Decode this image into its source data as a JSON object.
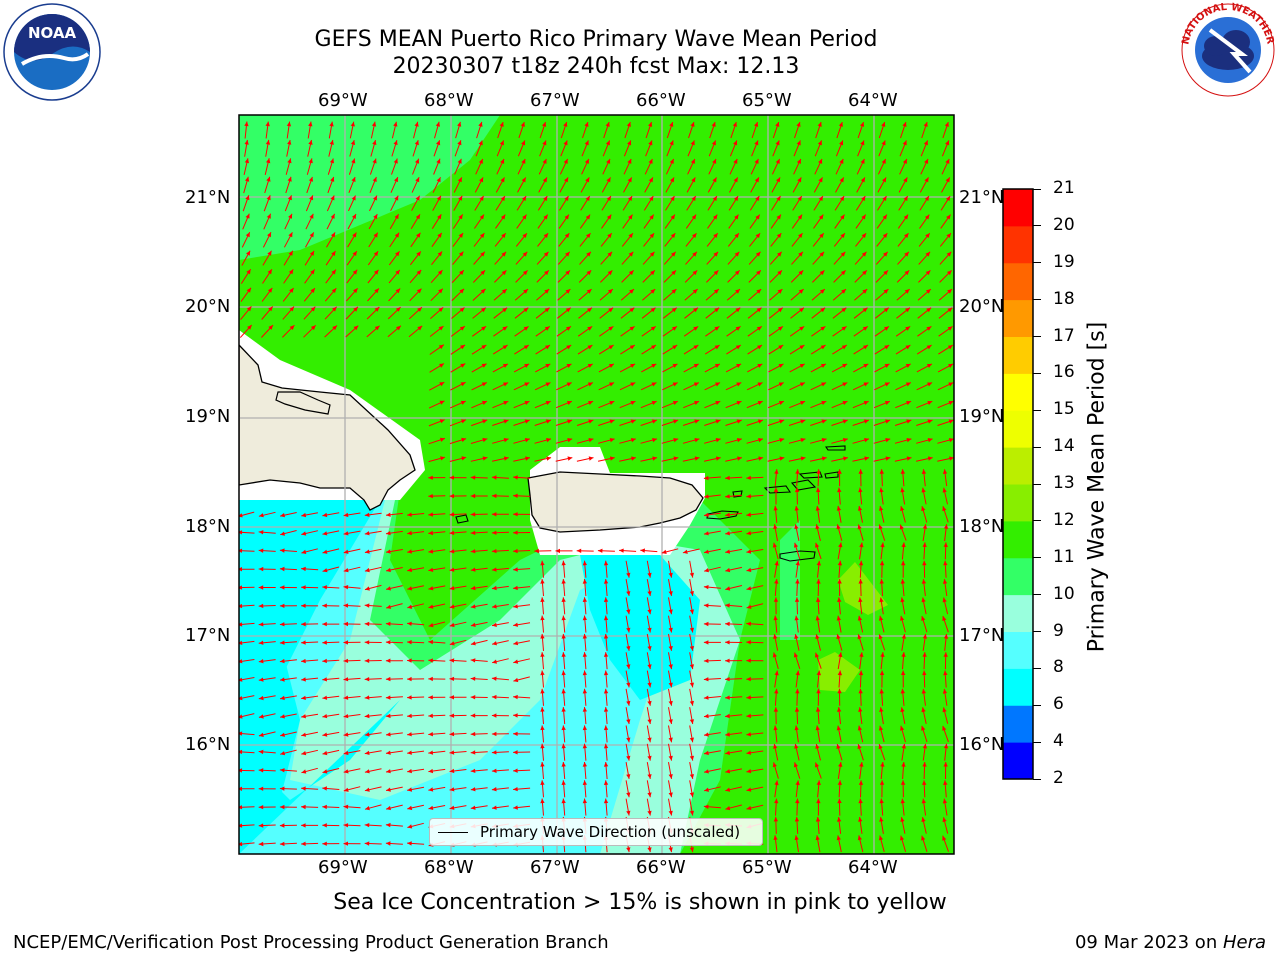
{
  "title": {
    "line1": "GEFS MEAN Puerto Rico Primary Wave Mean Period",
    "line2": "20230307 t18z 240h fcst   Max: 12.13"
  },
  "logos": {
    "left": {
      "name": "noaa-logo",
      "text": "NOAA"
    },
    "right": {
      "name": "nws-logo",
      "text": "NATIONAL WEATHER SERVICE"
    }
  },
  "map": {
    "longitude_labels": [
      "69°W",
      "68°W",
      "67°W",
      "66°W",
      "65°W",
      "64°W"
    ],
    "latitude_labels": [
      "21°N",
      "20°N",
      "19°N",
      "18°N",
      "17°N",
      "16°N"
    ],
    "colors": {
      "land": "#efecdc",
      "coastline": "#000000",
      "gridline": "#b0b0b0",
      "arrow": "#ff0000",
      "period_11_12": "#33ee00",
      "period_10_11": "#33ff66",
      "period_9_10": "#99ffdd",
      "period_8_9": "#55ffff",
      "period_6_8": "#00ffff",
      "period_12_13": "#88ee00"
    }
  },
  "legend": {
    "label": "Primary Wave Direction (unscaled)"
  },
  "colorbar": {
    "title": "Primary Wave Mean Period [s]",
    "ticks": [
      "2",
      "4",
      "6",
      "8",
      "9",
      "10",
      "11",
      "12",
      "13",
      "14",
      "15",
      "16",
      "17",
      "18",
      "19",
      "20",
      "21"
    ],
    "colors": [
      "#0000ff",
      "#0077ff",
      "#00ffff",
      "#55ffff",
      "#99ffdd",
      "#33ff66",
      "#33ee00",
      "#88ee00",
      "#bbee00",
      "#eeff00",
      "#ffff00",
      "#ffcc00",
      "#ff9900",
      "#ff6600",
      "#ff3300",
      "#ff0000"
    ]
  },
  "note": "Sea Ice Concentration > 15% is shown in pink to yellow",
  "footer": {
    "left": "NCEP/EMC/Verification Post Processing Product Generation Branch",
    "right_prefix": "09 Mar 2023 on ",
    "right_machine": "Hera"
  }
}
